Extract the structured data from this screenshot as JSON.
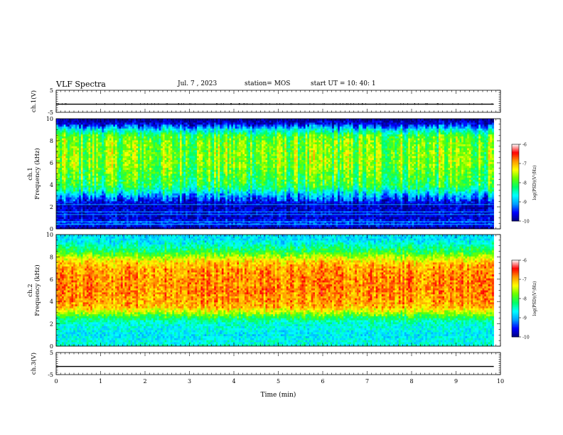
{
  "header": {
    "title": "VLF Spectra",
    "date": "Jul. 7 , 2023",
    "station": "station= MOS",
    "start": "start UT = 10: 40: 1"
  },
  "chart_data": [
    {
      "type": "line",
      "name": "ch1-voltage",
      "ylabel": "ch.1(V)",
      "ylim": [
        -5,
        5
      ],
      "yticks": [
        5,
        -5
      ],
      "xlim": [
        0,
        10
      ],
      "x": [
        0,
        9.85
      ],
      "values": [
        -1.3,
        -1.3
      ]
    },
    {
      "type": "heatmap",
      "name": "ch1-spectrogram",
      "ylabel": "ch.1\nFrequency (kHz)",
      "ylim": [
        0,
        10
      ],
      "yticks": [
        0,
        2,
        4,
        6,
        8,
        10
      ],
      "xlim": [
        0,
        10
      ],
      "data_end_min": 9.85,
      "colorbar": {
        "label": "log(PSD)(V²/Hz)",
        "range": [
          -10,
          -6
        ],
        "ticks": [
          -6,
          -7,
          -8,
          -9,
          -10
        ]
      },
      "profile_log_psd_by_freq": [
        {
          "f": 0.0,
          "v": -10
        },
        {
          "f": 0.5,
          "v": -9.3
        },
        {
          "f": 1.0,
          "v": -9.7
        },
        {
          "f": 1.5,
          "v": -9.6
        },
        {
          "f": 2.0,
          "v": -9.8
        },
        {
          "f": 2.5,
          "v": -9.5
        },
        {
          "f": 3.0,
          "v": -9.0
        },
        {
          "f": 3.5,
          "v": -8.3
        },
        {
          "f": 4.0,
          "v": -7.9
        },
        {
          "f": 5.0,
          "v": -7.7
        },
        {
          "f": 6.0,
          "v": -7.5
        },
        {
          "f": 7.0,
          "v": -7.5
        },
        {
          "f": 8.0,
          "v": -7.6
        },
        {
          "f": 8.5,
          "v": -7.8
        },
        {
          "f": 9.0,
          "v": -8.6
        },
        {
          "f": 9.5,
          "v": -9.6
        },
        {
          "f": 10.0,
          "v": -10
        }
      ]
    },
    {
      "type": "heatmap",
      "name": "ch2-spectrogram",
      "ylabel": "ch.2\nFrequency (kHz)",
      "ylim": [
        0,
        10
      ],
      "yticks": [
        0,
        2,
        4,
        6,
        8,
        10
      ],
      "xlim": [
        0,
        10
      ],
      "data_end_min": 9.85,
      "colorbar": {
        "label": "log(PSD)(V²/Hz)",
        "range": [
          -10,
          -6
        ],
        "ticks": [
          -6,
          -7,
          -8,
          -9,
          -10
        ]
      },
      "profile_log_psd_by_freq": [
        {
          "f": 0.0,
          "v": -8.4
        },
        {
          "f": 1.0,
          "v": -8.6
        },
        {
          "f": 2.0,
          "v": -8.4
        },
        {
          "f": 2.5,
          "v": -8.0
        },
        {
          "f": 3.0,
          "v": -7.3
        },
        {
          "f": 3.5,
          "v": -6.7
        },
        {
          "f": 4.0,
          "v": -6.6
        },
        {
          "f": 5.0,
          "v": -6.5
        },
        {
          "f": 6.0,
          "v": -6.5
        },
        {
          "f": 7.0,
          "v": -6.6
        },
        {
          "f": 7.5,
          "v": -6.8
        },
        {
          "f": 8.0,
          "v": -7.3
        },
        {
          "f": 8.5,
          "v": -7.9
        },
        {
          "f": 9.0,
          "v": -8.3
        },
        {
          "f": 9.5,
          "v": -8.6
        },
        {
          "f": 10.0,
          "v": -8.7
        }
      ]
    },
    {
      "type": "line",
      "name": "ch3-voltage",
      "ylabel": "ch.3(V)",
      "ylim": [
        -5,
        5
      ],
      "yticks": [
        5,
        -5
      ],
      "xlim": [
        0,
        10
      ],
      "xlabel": "Time (min)",
      "xticks": [
        0,
        1,
        2,
        3,
        4,
        5,
        6,
        7,
        8,
        9,
        10
      ],
      "x": [
        0,
        9.85
      ],
      "values": [
        -1.3,
        -1.3
      ]
    }
  ],
  "colors": {
    "colormap": [
      "#000080",
      "#0000ff",
      "#00a0ff",
      "#00ffff",
      "#00ff66",
      "#66ff00",
      "#ffff00",
      "#ff9900",
      "#ff0000",
      "#ffffff"
    ]
  }
}
